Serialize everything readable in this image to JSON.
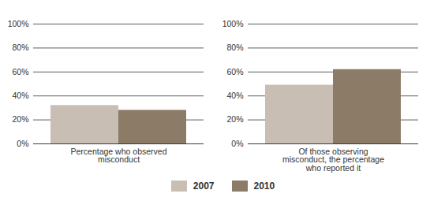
{
  "chart_data": [
    {
      "type": "bar",
      "categories": [
        "Percentage who observed misconduct"
      ],
      "series": [
        {
          "name": "2007",
          "color": "#c8beb4",
          "values": [
            32
          ]
        },
        {
          "name": "2010",
          "color": "#8c7b66",
          "values": [
            28
          ]
        }
      ],
      "ylim": [
        0,
        100
      ],
      "yticks": [
        {
          "value": 0,
          "label": "0%"
        },
        {
          "value": 20,
          "label": "20%"
        },
        {
          "value": 40,
          "label": "40%"
        },
        {
          "value": 60,
          "label": "60%"
        },
        {
          "value": 80,
          "label": "80%"
        },
        {
          "value": 100,
          "label": "100%"
        }
      ],
      "grid": true,
      "legend": "bottom"
    },
    {
      "type": "bar",
      "categories": [
        "Of those observing misconduct, the percentage who reported it"
      ],
      "series": [
        {
          "name": "2007",
          "color": "#c8beb4",
          "values": [
            49
          ]
        },
        {
          "name": "2010",
          "color": "#8c7b66",
          "values": [
            62
          ]
        }
      ],
      "ylim": [
        0,
        100
      ],
      "yticks": [
        {
          "value": 0,
          "label": "0%"
        },
        {
          "value": 20,
          "label": "20%"
        },
        {
          "value": 40,
          "label": "40%"
        },
        {
          "value": 60,
          "label": "60%"
        },
        {
          "value": 80,
          "label": "80%"
        },
        {
          "value": 100,
          "label": "100%"
        }
      ],
      "grid": true,
      "legend": "bottom"
    }
  ]
}
